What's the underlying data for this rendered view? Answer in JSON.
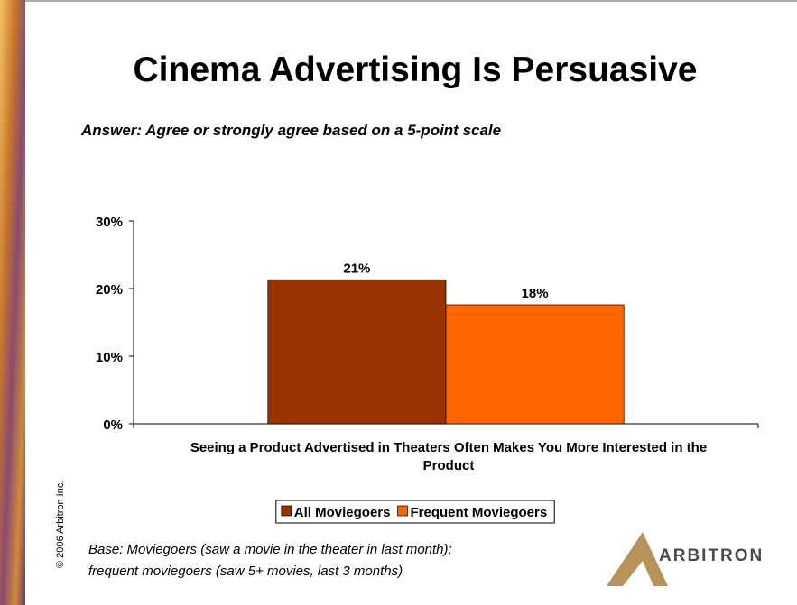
{
  "chart_data": {
    "type": "bar",
    "title": "Cinema Advertising Is Persuasive",
    "subtitle": "Answer:  Agree or strongly agree based on a 5-point scale",
    "categories": [
      "Seeing a Product Advertised in Theaters Often Makes You More Interested in the Product"
    ],
    "series": [
      {
        "name": "All Moviegoers",
        "color": "#993300",
        "values": [
          21.3
        ],
        "value_labels": [
          "21%"
        ]
      },
      {
        "name": "Frequent Moviegoers",
        "color": "#ff6600",
        "values": [
          17.6
        ],
        "value_labels": [
          "18%"
        ]
      }
    ],
    "ylim": [
      0,
      30
    ],
    "yticks": [
      {
        "value": 0,
        "label": "0%"
      },
      {
        "value": 10,
        "label": "10%"
      },
      {
        "value": 20,
        "label": "20%"
      },
      {
        "value": 30,
        "label": "30%"
      }
    ],
    "grid": false,
    "legend": "bottom",
    "footnote": [
      "Base:  Moviegoers (saw a movie in the theater in last month);",
      "frequent moviegoers (saw 5+ movies, last 3 months)"
    ],
    "copyright": "© 2006 Arbitron Inc.",
    "logo": "ARBITRON"
  }
}
